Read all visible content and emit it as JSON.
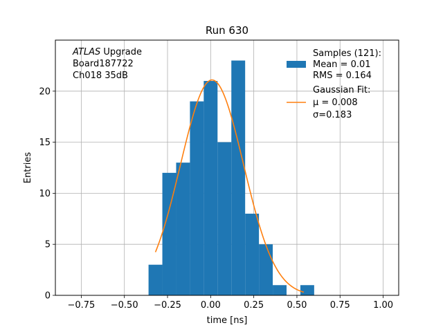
{
  "chart_data": {
    "type": "bar",
    "title": "Run 630",
    "xlabel": "time [ns]",
    "ylabel": "Entries",
    "xlim": [
      -0.9,
      1.09
    ],
    "ylim": [
      0,
      25.0
    ],
    "grid": true,
    "xticks": [
      -0.75,
      -0.5,
      -0.25,
      0.0,
      0.25,
      0.5,
      0.75,
      1.0
    ],
    "xtick_labels": [
      "−0.75",
      "−0.50",
      "−0.25",
      "0.00",
      "0.25",
      "0.50",
      "0.75",
      "1.00"
    ],
    "yticks": [
      0,
      5,
      10,
      15,
      20
    ],
    "ytick_labels": [
      "0",
      "5",
      "10",
      "15",
      "20"
    ],
    "histogram": {
      "name": "Samples",
      "color": "#1f77b4",
      "bin_edges": [
        -0.36,
        -0.28,
        -0.2,
        -0.12,
        -0.04,
        0.04,
        0.12,
        0.2,
        0.28,
        0.36,
        0.44,
        0.52,
        0.6
      ],
      "counts": [
        3,
        12,
        13,
        19,
        21,
        15,
        23,
        8,
        5,
        1,
        0,
        1
      ]
    },
    "fit": {
      "name": "Gaussian Fit",
      "color": "#ff7f0e",
      "amplitude": 21.1,
      "mu": 0.008,
      "sigma": 0.183,
      "x_range": [
        -0.32,
        0.54
      ]
    },
    "annotation": {
      "italic": "ATLAS",
      "rest": " Upgrade",
      "line2": " Board187722",
      "line3": " Ch018 35dB"
    },
    "legend": {
      "location": "top-right",
      "samples_lines": [
        "Samples (121):",
        " Mean = 0.01",
        " RMS = 0.164"
      ],
      "fit_lines": [
        "Gaussian Fit:",
        " μ = 0.008",
        " σ=0.183"
      ]
    }
  }
}
